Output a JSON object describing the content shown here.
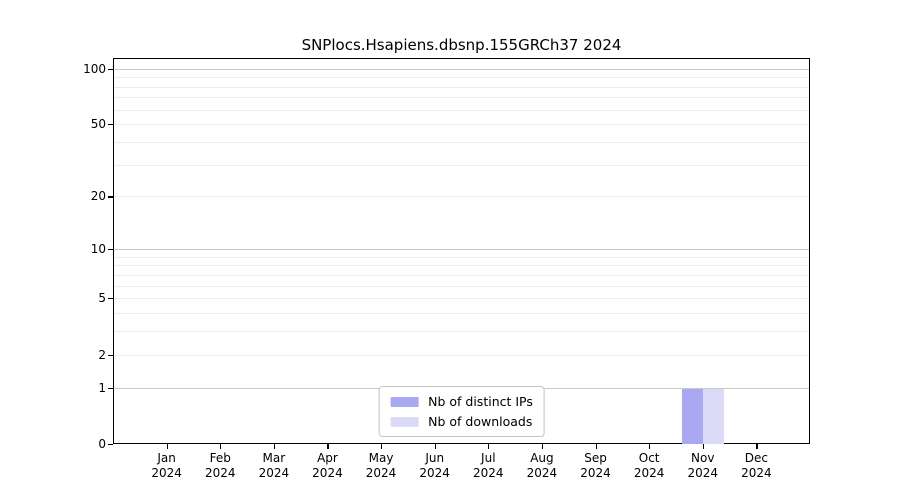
{
  "chart_data": {
    "type": "bar",
    "title": "SNPlocs.Hsapiens.dbsnp.155GRCh37 2024",
    "x_categories": [
      "Jan",
      "Feb",
      "Mar",
      "Apr",
      "May",
      "Jun",
      "Jul",
      "Aug",
      "Sep",
      "Oct",
      "Nov",
      "Dec"
    ],
    "x_year_sublabel": "2024",
    "series": [
      {
        "name": "Nb of distinct IPs",
        "color": "#a9a9f2",
        "values": [
          0,
          0,
          0,
          0,
          0,
          0,
          0,
          0,
          0,
          0,
          1,
          0
        ]
      },
      {
        "name": "Nb of downloads",
        "color": "#dbdbf8",
        "values": [
          0,
          0,
          0,
          0,
          0,
          0,
          0,
          0,
          0,
          0,
          1,
          0
        ]
      }
    ],
    "y_scale": "log10(1+x)",
    "ylim": [
      0,
      114
    ],
    "y_major_ticks": [
      100,
      50,
      20,
      10,
      5,
      2,
      1,
      0
    ],
    "grid_major_values": [
      1,
      10,
      100
    ],
    "grid_minor_values": [
      2,
      3,
      4,
      5,
      6,
      7,
      8,
      9,
      20,
      30,
      40,
      50,
      60,
      70,
      80,
      90
    ],
    "grid": true,
    "legend_position": "lower center"
  },
  "colors": {
    "axis": "#000000",
    "grid_major": "#c9c9c9",
    "grid_minor": "#ececec",
    "background": "#ffffff",
    "legend_border": "#c3c3c3"
  }
}
